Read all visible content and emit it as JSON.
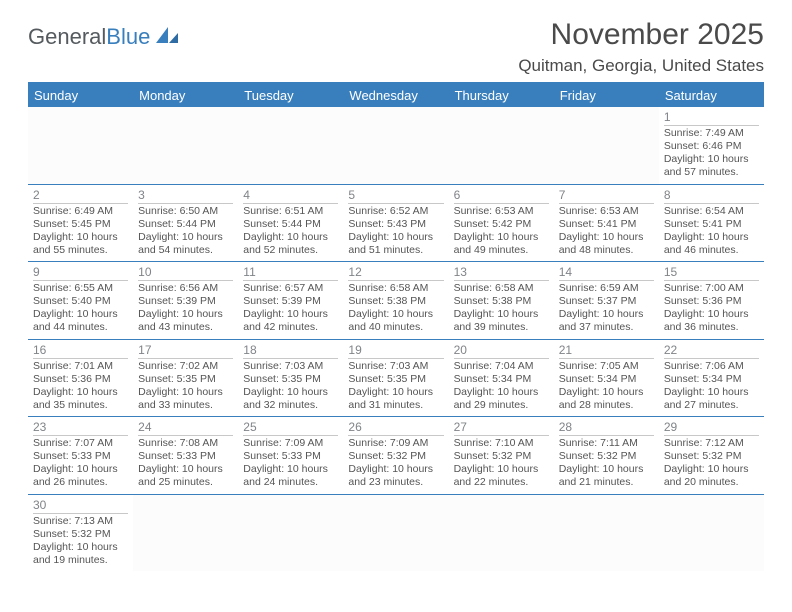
{
  "logo": {
    "text1": "General",
    "text2": "Blue"
  },
  "title": "November 2025",
  "subtitle": "Quitman, Georgia, United States",
  "weekdays": [
    "Sunday",
    "Monday",
    "Tuesday",
    "Wednesday",
    "Thursday",
    "Friday",
    "Saturday"
  ],
  "colors": {
    "accent": "#3a7fbd",
    "text": "#4a4a4a"
  },
  "weeks": [
    [
      {
        "blank": true
      },
      {
        "blank": true
      },
      {
        "blank": true
      },
      {
        "blank": true
      },
      {
        "blank": true
      },
      {
        "blank": true
      },
      {
        "num": "1",
        "sunrise": "Sunrise: 7:49 AM",
        "sunset": "Sunset: 6:46 PM",
        "day1": "Daylight: 10 hours",
        "day2": "and 57 minutes."
      }
    ],
    [
      {
        "num": "2",
        "sunrise": "Sunrise: 6:49 AM",
        "sunset": "Sunset: 5:45 PM",
        "day1": "Daylight: 10 hours",
        "day2": "and 55 minutes."
      },
      {
        "num": "3",
        "sunrise": "Sunrise: 6:50 AM",
        "sunset": "Sunset: 5:44 PM",
        "day1": "Daylight: 10 hours",
        "day2": "and 54 minutes."
      },
      {
        "num": "4",
        "sunrise": "Sunrise: 6:51 AM",
        "sunset": "Sunset: 5:44 PM",
        "day1": "Daylight: 10 hours",
        "day2": "and 52 minutes."
      },
      {
        "num": "5",
        "sunrise": "Sunrise: 6:52 AM",
        "sunset": "Sunset: 5:43 PM",
        "day1": "Daylight: 10 hours",
        "day2": "and 51 minutes."
      },
      {
        "num": "6",
        "sunrise": "Sunrise: 6:53 AM",
        "sunset": "Sunset: 5:42 PM",
        "day1": "Daylight: 10 hours",
        "day2": "and 49 minutes."
      },
      {
        "num": "7",
        "sunrise": "Sunrise: 6:53 AM",
        "sunset": "Sunset: 5:41 PM",
        "day1": "Daylight: 10 hours",
        "day2": "and 48 minutes."
      },
      {
        "num": "8",
        "sunrise": "Sunrise: 6:54 AM",
        "sunset": "Sunset: 5:41 PM",
        "day1": "Daylight: 10 hours",
        "day2": "and 46 minutes."
      }
    ],
    [
      {
        "num": "9",
        "sunrise": "Sunrise: 6:55 AM",
        "sunset": "Sunset: 5:40 PM",
        "day1": "Daylight: 10 hours",
        "day2": "and 44 minutes."
      },
      {
        "num": "10",
        "sunrise": "Sunrise: 6:56 AM",
        "sunset": "Sunset: 5:39 PM",
        "day1": "Daylight: 10 hours",
        "day2": "and 43 minutes."
      },
      {
        "num": "11",
        "sunrise": "Sunrise: 6:57 AM",
        "sunset": "Sunset: 5:39 PM",
        "day1": "Daylight: 10 hours",
        "day2": "and 42 minutes."
      },
      {
        "num": "12",
        "sunrise": "Sunrise: 6:58 AM",
        "sunset": "Sunset: 5:38 PM",
        "day1": "Daylight: 10 hours",
        "day2": "and 40 minutes."
      },
      {
        "num": "13",
        "sunrise": "Sunrise: 6:58 AM",
        "sunset": "Sunset: 5:38 PM",
        "day1": "Daylight: 10 hours",
        "day2": "and 39 minutes."
      },
      {
        "num": "14",
        "sunrise": "Sunrise: 6:59 AM",
        "sunset": "Sunset: 5:37 PM",
        "day1": "Daylight: 10 hours",
        "day2": "and 37 minutes."
      },
      {
        "num": "15",
        "sunrise": "Sunrise: 7:00 AM",
        "sunset": "Sunset: 5:36 PM",
        "day1": "Daylight: 10 hours",
        "day2": "and 36 minutes."
      }
    ],
    [
      {
        "num": "16",
        "sunrise": "Sunrise: 7:01 AM",
        "sunset": "Sunset: 5:36 PM",
        "day1": "Daylight: 10 hours",
        "day2": "and 35 minutes."
      },
      {
        "num": "17",
        "sunrise": "Sunrise: 7:02 AM",
        "sunset": "Sunset: 5:35 PM",
        "day1": "Daylight: 10 hours",
        "day2": "and 33 minutes."
      },
      {
        "num": "18",
        "sunrise": "Sunrise: 7:03 AM",
        "sunset": "Sunset: 5:35 PM",
        "day1": "Daylight: 10 hours",
        "day2": "and 32 minutes."
      },
      {
        "num": "19",
        "sunrise": "Sunrise: 7:03 AM",
        "sunset": "Sunset: 5:35 PM",
        "day1": "Daylight: 10 hours",
        "day2": "and 31 minutes."
      },
      {
        "num": "20",
        "sunrise": "Sunrise: 7:04 AM",
        "sunset": "Sunset: 5:34 PM",
        "day1": "Daylight: 10 hours",
        "day2": "and 29 minutes."
      },
      {
        "num": "21",
        "sunrise": "Sunrise: 7:05 AM",
        "sunset": "Sunset: 5:34 PM",
        "day1": "Daylight: 10 hours",
        "day2": "and 28 minutes."
      },
      {
        "num": "22",
        "sunrise": "Sunrise: 7:06 AM",
        "sunset": "Sunset: 5:34 PM",
        "day1": "Daylight: 10 hours",
        "day2": "and 27 minutes."
      }
    ],
    [
      {
        "num": "23",
        "sunrise": "Sunrise: 7:07 AM",
        "sunset": "Sunset: 5:33 PM",
        "day1": "Daylight: 10 hours",
        "day2": "and 26 minutes."
      },
      {
        "num": "24",
        "sunrise": "Sunrise: 7:08 AM",
        "sunset": "Sunset: 5:33 PM",
        "day1": "Daylight: 10 hours",
        "day2": "and 25 minutes."
      },
      {
        "num": "25",
        "sunrise": "Sunrise: 7:09 AM",
        "sunset": "Sunset: 5:33 PM",
        "day1": "Daylight: 10 hours",
        "day2": "and 24 minutes."
      },
      {
        "num": "26",
        "sunrise": "Sunrise: 7:09 AM",
        "sunset": "Sunset: 5:32 PM",
        "day1": "Daylight: 10 hours",
        "day2": "and 23 minutes."
      },
      {
        "num": "27",
        "sunrise": "Sunrise: 7:10 AM",
        "sunset": "Sunset: 5:32 PM",
        "day1": "Daylight: 10 hours",
        "day2": "and 22 minutes."
      },
      {
        "num": "28",
        "sunrise": "Sunrise: 7:11 AM",
        "sunset": "Sunset: 5:32 PM",
        "day1": "Daylight: 10 hours",
        "day2": "and 21 minutes."
      },
      {
        "num": "29",
        "sunrise": "Sunrise: 7:12 AM",
        "sunset": "Sunset: 5:32 PM",
        "day1": "Daylight: 10 hours",
        "day2": "and 20 minutes."
      }
    ],
    [
      {
        "num": "30",
        "sunrise": "Sunrise: 7:13 AM",
        "sunset": "Sunset: 5:32 PM",
        "day1": "Daylight: 10 hours",
        "day2": "and 19 minutes."
      },
      {
        "blank": true
      },
      {
        "blank": true
      },
      {
        "blank": true
      },
      {
        "blank": true
      },
      {
        "blank": true
      },
      {
        "blank": true
      }
    ]
  ]
}
